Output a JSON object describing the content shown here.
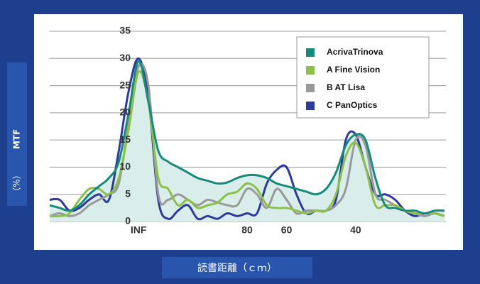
{
  "chart_data": {
    "type": "line",
    "ylabel": "MTF",
    "ylabel_unit": "（%）",
    "xlabel": "読書距離（ｃｍ）",
    "categories": [
      null,
      null,
      null,
      null,
      null,
      null,
      null,
      null,
      null,
      "INF",
      null,
      null,
      null,
      null,
      null,
      null,
      null,
      null,
      null,
      null,
      "80",
      null,
      null,
      null,
      "60",
      null,
      null,
      null,
      null,
      null,
      null,
      "40",
      null,
      null,
      null,
      null,
      null,
      null,
      null,
      null,
      null
    ],
    "ylim": [
      0,
      35
    ],
    "yticks": [
      0,
      5,
      10,
      15,
      20,
      25,
      30,
      35
    ],
    "grid": true,
    "area_fill": "#d9eeea",
    "series": [
      {
        "name": "AcrivaTrinova",
        "color": "#168a7c",
        "values": [
          3,
          2.5,
          2,
          3,
          5,
          6.5,
          8,
          11,
          20,
          29.5,
          22,
          13,
          11,
          10,
          9,
          8,
          7.5,
          7,
          7.2,
          8,
          8.5,
          8.5,
          8,
          7,
          6.5,
          6,
          5.5,
          5,
          6,
          9,
          14,
          16,
          15,
          8,
          3,
          2.5,
          2,
          2,
          1.5,
          2,
          2
        ]
      },
      {
        "name": "A Fine Vision",
        "color": "#8cc04a",
        "values": [
          1,
          1,
          1.5,
          4,
          6,
          6,
          5,
          8,
          17,
          27.5,
          22,
          8,
          6,
          3,
          4,
          2.5,
          3,
          3.5,
          5,
          5.5,
          7,
          6,
          3,
          2.5,
          2.5,
          2,
          1.5,
          2,
          2,
          5,
          12,
          14.5,
          10,
          3,
          3,
          3,
          2,
          1.5,
          1.5,
          1.5,
          1
        ]
      },
      {
        "name": "B AT Lisa",
        "color": "#999999",
        "values": [
          1,
          1.5,
          1,
          1.5,
          3,
          4,
          5,
          7,
          18,
          28.5,
          25,
          5,
          4,
          5,
          4,
          3,
          4,
          3.5,
          3,
          3,
          6,
          5,
          2.5,
          6,
          4,
          1.5,
          2,
          2,
          2,
          3,
          6,
          15,
          14,
          5,
          4,
          3,
          2,
          1.5,
          1,
          1.5,
          1
        ]
      },
      {
        "name": "C PanOptics",
        "color": "#2b3a9c",
        "values": [
          4,
          4,
          2,
          2.5,
          4,
          5,
          4,
          13,
          24,
          30,
          23,
          4,
          0.5,
          2,
          3,
          0.5,
          1,
          0.5,
          1.5,
          1,
          1.5,
          1.5,
          7,
          9.5,
          10,
          5,
          1.5,
          2,
          2,
          4,
          15,
          16,
          10,
          5,
          5,
          4,
          2,
          1,
          1.5,
          1.5,
          1
        ]
      }
    ]
  }
}
